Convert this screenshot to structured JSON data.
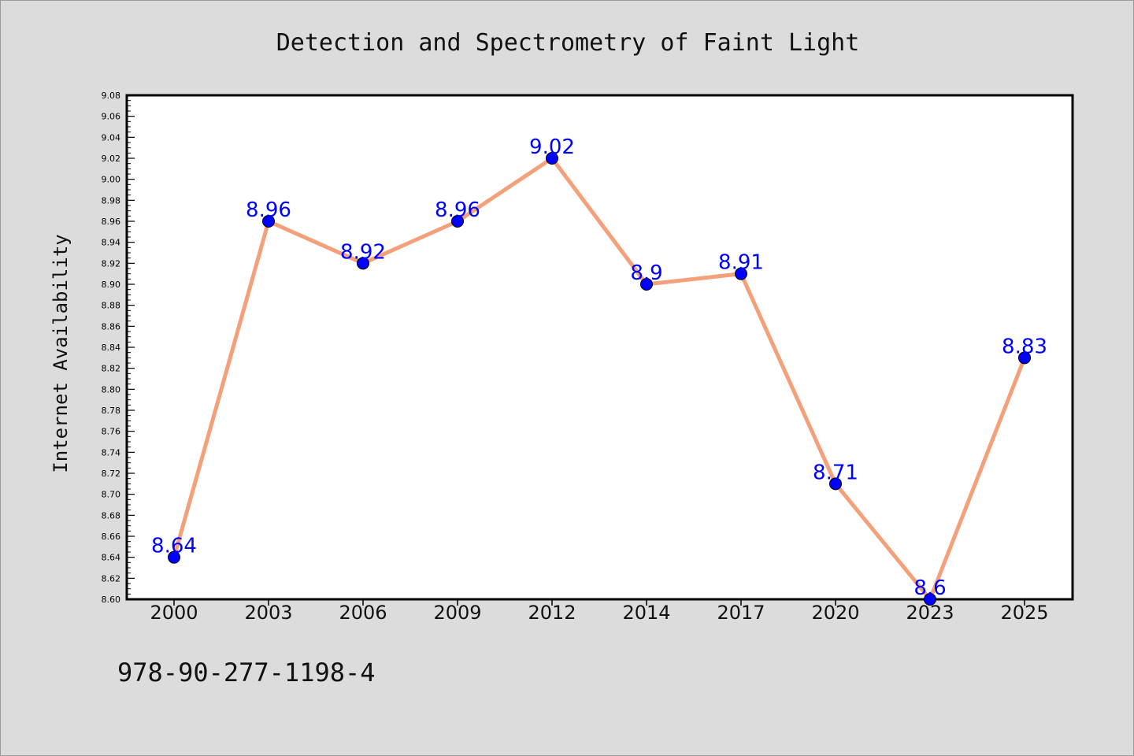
{
  "chart_data": {
    "type": "line",
    "title": "Detection and Spectrometry of Faint Light",
    "xlabel": "",
    "ylabel": "Internet Availability",
    "categories": [
      "2000",
      "2003",
      "2006",
      "2009",
      "2012",
      "2014",
      "2017",
      "2020",
      "2023",
      "2025"
    ],
    "values": [
      8.64,
      8.96,
      8.92,
      8.96,
      9.02,
      8.9,
      8.91,
      8.71,
      8.6,
      8.83
    ],
    "data_labels": [
      "8.64",
      "8.96",
      "8.92",
      "8.96",
      "9.02",
      "8.9",
      "8.91",
      "8.71",
      "8.6",
      "8.83"
    ],
    "yticks": [
      "8.60",
      "8.62",
      "8.64",
      "8.66",
      "8.68",
      "8.70",
      "8.72",
      "8.74",
      "8.76",
      "8.78",
      "8.80",
      "8.82",
      "8.84",
      "8.86",
      "8.88",
      "8.90",
      "8.92",
      "8.94",
      "8.96",
      "8.98",
      "9.00",
      "9.02",
      "9.04",
      "9.06",
      "9.08"
    ],
    "ylim": [
      8.6,
      9.08
    ],
    "grid": false,
    "legend": "none",
    "colors": {
      "line": "#f4a07a",
      "marker": "#0000ff",
      "label": "#0000ff",
      "background": "#dcdcdc",
      "plot_background": "#ffffff"
    }
  },
  "footer": {
    "text": "978-90-277-1198-4"
  }
}
